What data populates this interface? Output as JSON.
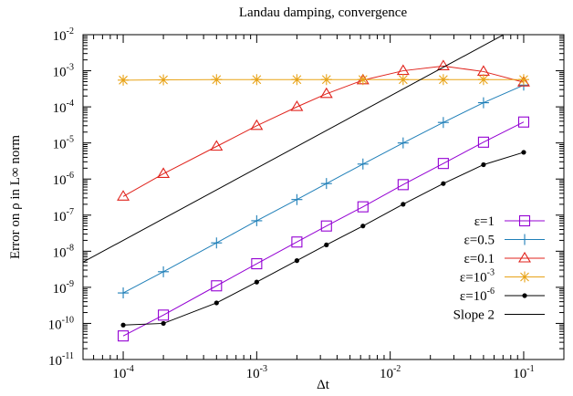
{
  "chart_data": {
    "type": "line",
    "title": "Landau damping, convergence",
    "xlabel": "Δt",
    "ylabel": "Error on ρ in L∞ norm",
    "xscale": "log",
    "yscale": "log",
    "xlim": [
      5e-05,
      0.2
    ],
    "ylim": [
      1e-11,
      0.01
    ],
    "x_ticks": [
      {
        "value": 0.0001,
        "base": "10",
        "exp": "-4"
      },
      {
        "value": 0.001,
        "base": "10",
        "exp": "-3"
      },
      {
        "value": 0.01,
        "base": "10",
        "exp": "-2"
      },
      {
        "value": 0.1,
        "base": "10",
        "exp": "-1"
      }
    ],
    "y_ticks": [
      {
        "value": 1e-11,
        "base": "10",
        "exp": "-11"
      },
      {
        "value": 1e-10,
        "base": "10",
        "exp": "-10"
      },
      {
        "value": 1e-09,
        "base": "10",
        "exp": "-9"
      },
      {
        "value": 1e-08,
        "base": "10",
        "exp": "-8"
      },
      {
        "value": 1e-07,
        "base": "10",
        "exp": "-7"
      },
      {
        "value": 1e-06,
        "base": "10",
        "exp": "-6"
      },
      {
        "value": 1e-05,
        "base": "10",
        "exp": "-5"
      },
      {
        "value": 0.0001,
        "base": "10",
        "exp": "-4"
      },
      {
        "value": 0.001,
        "base": "10",
        "exp": "-3"
      },
      {
        "value": 0.01,
        "base": "10",
        "exp": "-2"
      }
    ],
    "legend_position": "bottom-right",
    "grid": false,
    "series": [
      {
        "name": "ε=1",
        "label_main": "ε=1",
        "label_sup": "",
        "color": "#9400d3",
        "marker": "square",
        "x": [
          0.0001,
          0.0002,
          0.0005,
          0.001,
          0.002,
          0.00333,
          0.00625,
          0.0125,
          0.025,
          0.05,
          0.1
        ],
        "y": [
          4.5e-11,
          1.7e-10,
          1.1e-09,
          4.5e-09,
          1.8e-08,
          5e-08,
          1.7e-07,
          7e-07,
          2.7e-06,
          1.05e-05,
          3.8e-05
        ]
      },
      {
        "name": "ε=0.5",
        "label_main": "ε=0.5",
        "label_sup": "",
        "color": "#1f7fb8",
        "marker": "plus",
        "x": [
          0.0001,
          0.0002,
          0.0005,
          0.001,
          0.002,
          0.00333,
          0.00625,
          0.0125,
          0.025,
          0.05,
          0.1
        ],
        "y": [
          7e-10,
          2.7e-09,
          1.7e-08,
          7e-08,
          2.7e-07,
          7.5e-07,
          2.6e-06,
          1e-05,
          3.7e-05,
          0.00013,
          0.0004
        ]
      },
      {
        "name": "ε=0.1",
        "label_main": "ε=0.1",
        "label_sup": "",
        "color": "#e0231c",
        "marker": "triangle",
        "x": [
          0.0001,
          0.0002,
          0.0005,
          0.001,
          0.002,
          0.00333,
          0.00625,
          0.0125,
          0.025,
          0.05,
          0.1
        ],
        "y": [
          3.3e-07,
          1.4e-06,
          8e-06,
          3e-05,
          0.0001,
          0.00023,
          0.00055,
          0.001,
          0.00135,
          0.00095,
          0.00048
        ]
      },
      {
        "name": "ε=10-3",
        "label_main": "ε=10",
        "label_sup": "-3",
        "color": "#e8a317",
        "marker": "star",
        "x": [
          0.0001,
          0.0002,
          0.0005,
          0.001,
          0.002,
          0.00333,
          0.00625,
          0.0125,
          0.025,
          0.05,
          0.1
        ],
        "y": [
          0.00055,
          0.00056,
          0.00057,
          0.00057,
          0.00057,
          0.00057,
          0.00057,
          0.00057,
          0.00057,
          0.00057,
          0.00057
        ]
      },
      {
        "name": "ε=10-6",
        "label_main": "ε=10",
        "label_sup": "-6",
        "color": "#000000",
        "marker": "dot",
        "x": [
          0.0001,
          0.0002,
          0.0005,
          0.001,
          0.002,
          0.00333,
          0.00625,
          0.0125,
          0.025,
          0.05,
          0.1
        ],
        "y": [
          9e-11,
          1e-10,
          3.7e-10,
          1.4e-09,
          5.5e-09,
          1.5e-08,
          5e-08,
          2e-07,
          7.5e-07,
          2.5e-06,
          5.5e-06
        ]
      },
      {
        "name": "Slope 2",
        "label_main": "Slope 2",
        "label_sup": "",
        "color": "#000000",
        "marker": "none",
        "x": [
          5e-05,
          0.1
        ],
        "y": [
          5e-09,
          0.02
        ]
      }
    ]
  }
}
